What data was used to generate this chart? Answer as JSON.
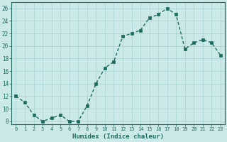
{
  "x": [
    0,
    1,
    2,
    3,
    4,
    5,
    6,
    7,
    8,
    9,
    10,
    11,
    12,
    13,
    14,
    15,
    16,
    17,
    18,
    19,
    20,
    21,
    22,
    23
  ],
  "y": [
    12,
    11,
    9,
    8,
    8.5,
    9,
    8,
    8,
    10.5,
    14,
    16.5,
    17.5,
    21.5,
    22,
    22.5,
    24.5,
    25,
    26,
    25,
    19.5,
    20.5,
    21,
    20.5,
    18.5
  ],
  "line_color": "#1e6b5e",
  "marker_color": "#1e6b5e",
  "bg_color": "#cce9e9",
  "grid_color": "#a8d0d0",
  "xlabel": "Humidex (Indice chaleur)",
  "ylim": [
    7.5,
    27
  ],
  "xlim": [
    -0.5,
    23.5
  ],
  "yticks": [
    8,
    10,
    12,
    14,
    16,
    18,
    20,
    22,
    24,
    26
  ],
  "xticks": [
    0,
    1,
    2,
    3,
    4,
    5,
    6,
    7,
    8,
    9,
    10,
    11,
    12,
    13,
    14,
    15,
    16,
    17,
    18,
    19,
    20,
    21,
    22,
    23
  ],
  "font_color": "#1e6b5e",
  "linewidth": 1.0,
  "markersize": 2.5
}
